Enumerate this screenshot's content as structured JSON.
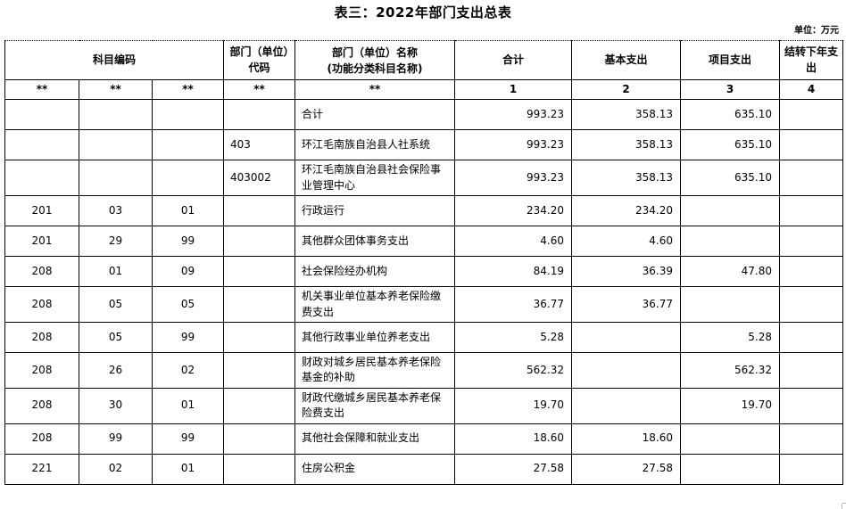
{
  "page": {
    "title": "表三：2022年部门支出总表",
    "unit_label": "单位：万元"
  },
  "table": {
    "header": {
      "subject_code": "科目编码",
      "dept_code": "部门（单位）代码",
      "dept_name_line1": "部门（单位）名称",
      "dept_name_line2": "(功能分类科目名称)",
      "total": "合计",
      "basic": "基本支出",
      "project": "项目支出",
      "carryover": "结转下年支出",
      "masked": "**",
      "col_numbers": [
        "1",
        "2",
        "3",
        "4"
      ]
    },
    "rows": [
      {
        "code1": "",
        "code2": "",
        "code3": "",
        "dept_code": "",
        "name": "合计",
        "total": "993.23",
        "basic": "358.13",
        "project": "635.10",
        "carryover": ""
      },
      {
        "code1": "",
        "code2": "",
        "code3": "",
        "dept_code": "403",
        "name": "环江毛南族自治县人社系统",
        "total": "993.23",
        "basic": "358.13",
        "project": "635.10",
        "carryover": ""
      },
      {
        "code1": "",
        "code2": "",
        "code3": "",
        "dept_code": "403002",
        "name": "环江毛南族自治县社会保险事业管理中心",
        "total": "993.23",
        "basic": "358.13",
        "project": "635.10",
        "carryover": ""
      },
      {
        "code1": "201",
        "code2": "03",
        "code3": "01",
        "dept_code": "",
        "name": "行政运行",
        "total": "234.20",
        "basic": "234.20",
        "project": "",
        "carryover": ""
      },
      {
        "code1": "201",
        "code2": "29",
        "code3": "99",
        "dept_code": "",
        "name": "其他群众团体事务支出",
        "total": "4.60",
        "basic": "4.60",
        "project": "",
        "carryover": ""
      },
      {
        "code1": "208",
        "code2": "01",
        "code3": "09",
        "dept_code": "",
        "name": "社会保险经办机构",
        "total": "84.19",
        "basic": "36.39",
        "project": "47.80",
        "carryover": ""
      },
      {
        "code1": "208",
        "code2": "05",
        "code3": "05",
        "dept_code": "",
        "name": "机关事业单位基本养老保险缴费支出",
        "total": "36.77",
        "basic": "36.77",
        "project": "",
        "carryover": ""
      },
      {
        "code1": "208",
        "code2": "05",
        "code3": "99",
        "dept_code": "",
        "name": "其他行政事业单位养老支出",
        "total": "5.28",
        "basic": "",
        "project": "5.28",
        "carryover": ""
      },
      {
        "code1": "208",
        "code2": "26",
        "code3": "02",
        "dept_code": "",
        "name": "财政对城乡居民基本养老保险基金的补助",
        "total": "562.32",
        "basic": "",
        "project": "562.32",
        "carryover": ""
      },
      {
        "code1": "208",
        "code2": "30",
        "code3": "01",
        "dept_code": "",
        "name": "财政代缴城乡居民基本养老保险费支出",
        "total": "19.70",
        "basic": "",
        "project": "19.70",
        "carryover": ""
      },
      {
        "code1": "208",
        "code2": "99",
        "code3": "99",
        "dept_code": "",
        "name": "其他社会保障和就业支出",
        "total": "18.60",
        "basic": "18.60",
        "project": "",
        "carryover": ""
      },
      {
        "code1": "221",
        "code2": "02",
        "code3": "01",
        "dept_code": "",
        "name": "住房公积金",
        "total": "27.58",
        "basic": "27.58",
        "project": "",
        "carryover": ""
      }
    ]
  }
}
